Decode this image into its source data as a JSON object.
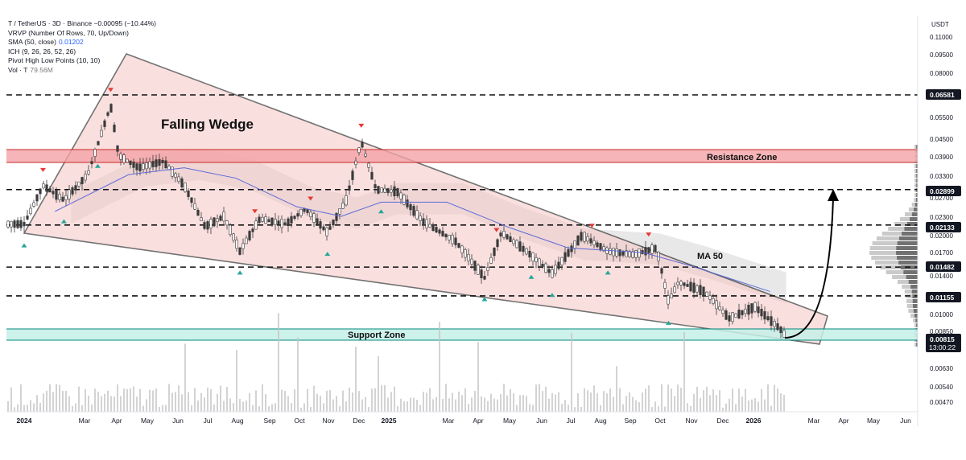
{
  "header": {
    "symbol_line": "T / TetherUS · 3D · Binance  −0.00095 (−10.44%)",
    "indicators": [
      {
        "label": "VRVP (Number Of Rows, 70, Up/Down)",
        "value": ""
      },
      {
        "label": "SMA (50, close)",
        "value": "0.01202"
      },
      {
        "label": "ICH (9, 26, 26, 52, 26)",
        "value": ""
      },
      {
        "label": "Pivot High Low Points (10, 10)",
        "value": ""
      },
      {
        "label": "Vol · T",
        "value": "79.56M"
      }
    ]
  },
  "chart_data": {
    "type": "candlestick",
    "quote_currency": "USDT",
    "y_axis_scale": "log",
    "y_ticks": [
      "0.11000",
      "0.09500",
      "0.08000",
      "0.06581",
      "0.05500",
      "0.04500",
      "0.03900",
      "0.03300",
      "0.02899",
      "0.02700",
      "0.02300",
      "0.02133",
      "0.02000",
      "0.01700",
      "0.01482",
      "0.01400",
      "0.01155",
      "0.01000",
      "0.00850",
      "0.00815",
      "0.00630",
      "0.00540",
      "0.00470"
    ],
    "highlighted_price_labels": [
      "0.06581",
      "0.02899",
      "0.02133",
      "0.01482",
      "0.01155",
      "0.00815"
    ],
    "current_price_label": "0.00815",
    "countdown": "13:00:22",
    "x_ticks": [
      "2024",
      "Mar",
      "Apr",
      "May",
      "Jun",
      "Jul",
      "Aug",
      "Sep",
      "Oct",
      "Nov",
      "Dec",
      "2025",
      "Mar",
      "Apr",
      "May",
      "Jun",
      "Jul",
      "Aug",
      "Sep",
      "Oct",
      "Nov",
      "Dec",
      "2026",
      "Mar",
      "Apr",
      "May",
      "Jun"
    ],
    "price_path": [
      {
        "date": "2024-01-01",
        "price": 0.0215
      },
      {
        "date": "2024-01-20",
        "price": 0.03
      },
      {
        "date": "2024-02-10",
        "price": 0.0265
      },
      {
        "date": "2024-03-05",
        "price": 0.033
      },
      {
        "date": "2024-03-28",
        "price": 0.06
      },
      {
        "date": "2024-04-05",
        "price": 0.039
      },
      {
        "date": "2024-04-25",
        "price": 0.035
      },
      {
        "date": "2024-05-20",
        "price": 0.037
      },
      {
        "date": "2024-06-10",
        "price": 0.03
      },
      {
        "date": "2024-07-01",
        "price": 0.021
      },
      {
        "date": "2024-07-20",
        "price": 0.023
      },
      {
        "date": "2024-08-05",
        "price": 0.017
      },
      {
        "date": "2024-08-25",
        "price": 0.0225
      },
      {
        "date": "2024-09-20",
        "price": 0.0215
      },
      {
        "date": "2024-10-10",
        "price": 0.0245
      },
      {
        "date": "2024-11-01",
        "price": 0.02
      },
      {
        "date": "2024-11-20",
        "price": 0.0265
      },
      {
        "date": "2024-12-05",
        "price": 0.044
      },
      {
        "date": "2024-12-20",
        "price": 0.029
      },
      {
        "date": "2025-01-10",
        "price": 0.0285
      },
      {
        "date": "2025-02-05",
        "price": 0.022
      },
      {
        "date": "2025-03-10",
        "price": 0.0185
      },
      {
        "date": "2025-04-08",
        "price": 0.0135
      },
      {
        "date": "2025-04-25",
        "price": 0.02
      },
      {
        "date": "2025-05-20",
        "price": 0.017
      },
      {
        "date": "2025-06-15",
        "price": 0.014
      },
      {
        "date": "2025-07-15",
        "price": 0.0195
      },
      {
        "date": "2025-08-10",
        "price": 0.017
      },
      {
        "date": "2025-09-05",
        "price": 0.0165
      },
      {
        "date": "2025-09-28",
        "price": 0.0175
      },
      {
        "date": "2025-10-10",
        "price": 0.011
      },
      {
        "date": "2025-10-20",
        "price": 0.013
      },
      {
        "date": "2025-11-15",
        "price": 0.012
      },
      {
        "date": "2025-12-10",
        "price": 0.0095
      },
      {
        "date": "2026-01-05",
        "price": 0.0105
      },
      {
        "date": "2026-01-30",
        "price": 0.0087
      },
      {
        "date": "2026-02-05",
        "price": 0.00815
      }
    ],
    "sma50_path": [
      {
        "date": "2024-02-01",
        "price": 0.024
      },
      {
        "date": "2024-04-15",
        "price": 0.033
      },
      {
        "date": "2024-06-10",
        "price": 0.035
      },
      {
        "date": "2024-08-01",
        "price": 0.032
      },
      {
        "date": "2024-10-01",
        "price": 0.025
      },
      {
        "date": "2024-11-15",
        "price": 0.023
      },
      {
        "date": "2024-12-25",
        "price": 0.026
      },
      {
        "date": "2025-03-01",
        "price": 0.026
      },
      {
        "date": "2025-05-01",
        "price": 0.021
      },
      {
        "date": "2025-07-01",
        "price": 0.0175
      },
      {
        "date": "2025-09-15",
        "price": 0.0168
      },
      {
        "date": "2025-11-01",
        "price": 0.015
      },
      {
        "date": "2026-01-20",
        "price": 0.012
      }
    ],
    "pivot_highs": [
      "2024-01-20",
      "2024-03-28",
      "2024-08-20",
      "2024-10-15",
      "2024-12-05",
      "2025-04-20",
      "2025-07-25",
      "2025-09-20"
    ],
    "pivot_lows": [
      "2024-01-01",
      "2024-02-10",
      "2024-03-15",
      "2024-08-05",
      "2024-11-01",
      "2024-12-25",
      "2025-05-25",
      "2025-04-08",
      "2025-06-15",
      "2025-08-10",
      "2025-10-10"
    ],
    "levels_dashed": [
      "0.06581",
      "0.02899",
      "0.02133",
      "0.01482",
      "0.01155"
    ],
    "annotations": {
      "pattern": "Falling Wedge",
      "resistance": "Resistance Zone",
      "support": "Support Zone",
      "ma": "MA 50"
    },
    "volume_note": "Vol · T 79.56M"
  },
  "colors": {
    "wedge_fill": "#f7c6c6",
    "resistance_fill": "#f4a3a6",
    "support_fill": "#c4f0e8",
    "candle_up": "#3a3a3a",
    "candle_down": "#3a3a3a",
    "sma": "#5b6bd6",
    "cloud": "#bdbdbd",
    "pivot_high": "#e53935",
    "pivot_low": "#26a69a",
    "label_bg": "#131722"
  }
}
